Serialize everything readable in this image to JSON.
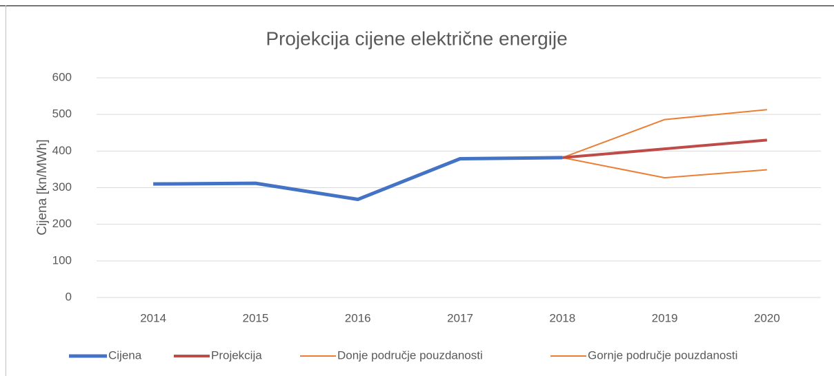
{
  "chart_data": {
    "type": "line",
    "title": "Projekcija cijene električne energije",
    "y_label": "Cijena [kn/MWh]",
    "categories": [
      "2014",
      "2015",
      "2016",
      "2017",
      "2018",
      "2019",
      "2020"
    ],
    "series": [
      {
        "name": "Cijena",
        "color": "#4472c4",
        "values": [
          310,
          312,
          268,
          379,
          382,
          null,
          null
        ]
      },
      {
        "name": "Projekcija",
        "color": "#be4b48",
        "values": [
          null,
          null,
          null,
          null,
          382,
          406,
          430
        ]
      },
      {
        "name": "Donje područje pouzdanosti",
        "color": "#ed7d31",
        "values": [
          null,
          null,
          null,
          null,
          382,
          327,
          349
        ]
      },
      {
        "name": "Gornje područje pouzdanosti",
        "color": "#ed7d31",
        "values": [
          null,
          null,
          null,
          null,
          382,
          486,
          513
        ]
      }
    ],
    "ylim": [
      0,
      600
    ],
    "yticks": [
      0,
      100,
      200,
      300,
      400,
      500,
      600
    ],
    "grid": true,
    "legend": "bottom"
  }
}
